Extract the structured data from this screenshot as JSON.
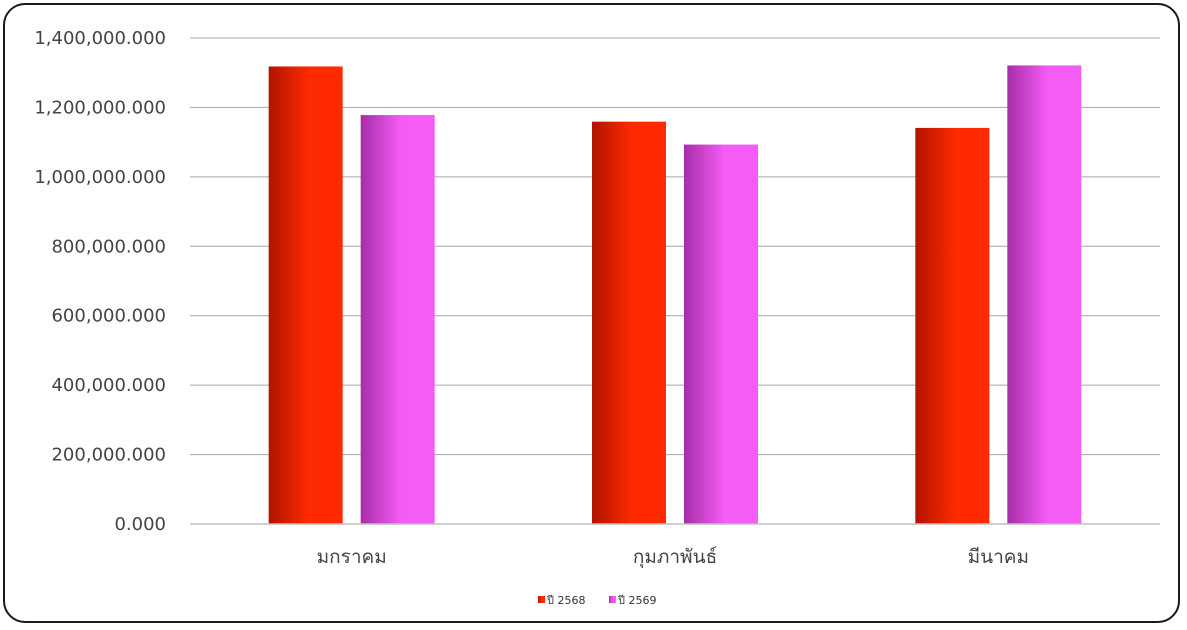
{
  "chart_data": {
    "type": "bar",
    "title": "",
    "xlabel": "",
    "ylabel": "",
    "categories": [
      "มกราคม",
      "กุมภาพันธ์",
      "มีนาคม"
    ],
    "series": [
      {
        "name": "ปี 2568",
        "values": [
          1318000,
          1159000,
          1141000
        ],
        "color_dark": "#b01400",
        "color_light": "#ff2a00"
      },
      {
        "name": "ปี 2569",
        "values": [
          1178000,
          1093000,
          1321000
        ],
        "color_dark": "#a62ea8",
        "color_light": "#f55cf5"
      }
    ],
    "ylim": [
      0,
      1400000
    ],
    "yticks": [
      0,
      200000,
      400000,
      600000,
      800000,
      1000000,
      1200000,
      1400000
    ],
    "ytick_labels": [
      "0.000",
      "200,000.000",
      "400,000.000",
      "600,000.000",
      "800,000.000",
      "1,000,000.000",
      "1,200,000.000",
      "1,400,000.000"
    ],
    "grid": true,
    "legend_position": "bottom"
  }
}
